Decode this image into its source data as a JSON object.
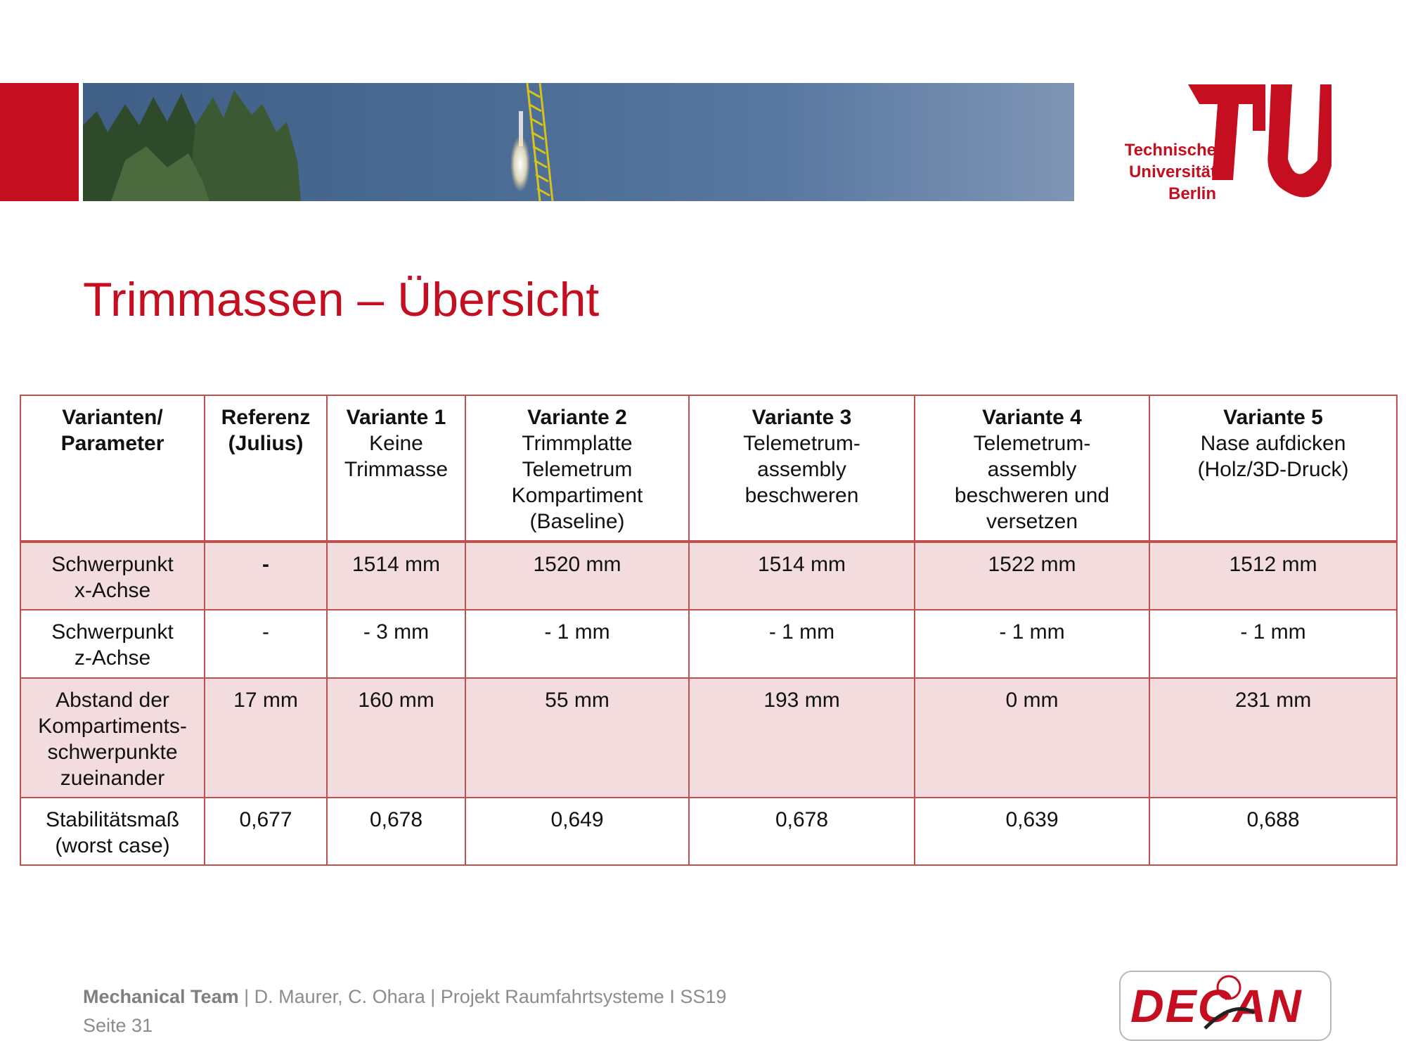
{
  "header": {
    "logo_lines": [
      "Technische",
      "Universität",
      "Berlin"
    ],
    "logo_side_word": "berlin"
  },
  "title": "Trimmassen – Übersicht",
  "table": {
    "columns": [
      {
        "bold": "Varianten/ Parameter",
        "sub": []
      },
      {
        "bold": "Referenz (Julius)",
        "sub": []
      },
      {
        "bold": "Variante 1",
        "sub": [
          "Keine",
          "Trimmasse"
        ]
      },
      {
        "bold": "Variante 2",
        "sub": [
          "Trimmplatte",
          "Telemetrum",
          "Kompartiment",
          "(Baseline)"
        ]
      },
      {
        "bold": "Variante 3",
        "sub": [
          "Telemetrum-",
          "assembly",
          "beschweren"
        ]
      },
      {
        "bold": "Variante 4",
        "sub": [
          "Telemetrum-",
          "assembly",
          "beschweren und",
          "versetzen"
        ]
      },
      {
        "bold": "Variante 5",
        "sub": [
          "Nase aufdicken",
          "(Holz/3D-Druck)"
        ]
      }
    ],
    "rows": [
      {
        "label": [
          "Schwerpunkt",
          "x-Achse"
        ],
        "cells": [
          "-",
          "1514 mm",
          "1520 mm",
          "1514 mm",
          "1522 mm",
          "1512 mm"
        ]
      },
      {
        "label": [
          "Schwerpunkt",
          "z-Achse"
        ],
        "cells": [
          "-",
          "- 3 mm",
          "- 1 mm",
          "- 1 mm",
          "- 1 mm",
          "- 1 mm"
        ]
      },
      {
        "label": [
          "Abstand der",
          "Kompartiments-",
          "schwerpunkte",
          "zueinander"
        ],
        "cells": [
          "17 mm",
          "160 mm",
          "55 mm",
          "193 mm",
          "0 mm",
          "231 mm"
        ]
      },
      {
        "label": [
          "Stabilitätsmaß",
          "(worst case)"
        ],
        "cells": [
          "0,677",
          "0,678",
          "0,649",
          "0,678",
          "0,639",
          "0,688"
        ]
      }
    ]
  },
  "footer": {
    "team": "Mechanical Team",
    "details": "|  D. Maurer, C. Ohara | Projekt Raumfahrtsysteme I SS19",
    "page": "Seite 31",
    "logo_text": "DECAN"
  },
  "colors": {
    "brand_red": "#c50e1f",
    "table_border": "#c0504d",
    "row_shade": "#f2dcde"
  }
}
